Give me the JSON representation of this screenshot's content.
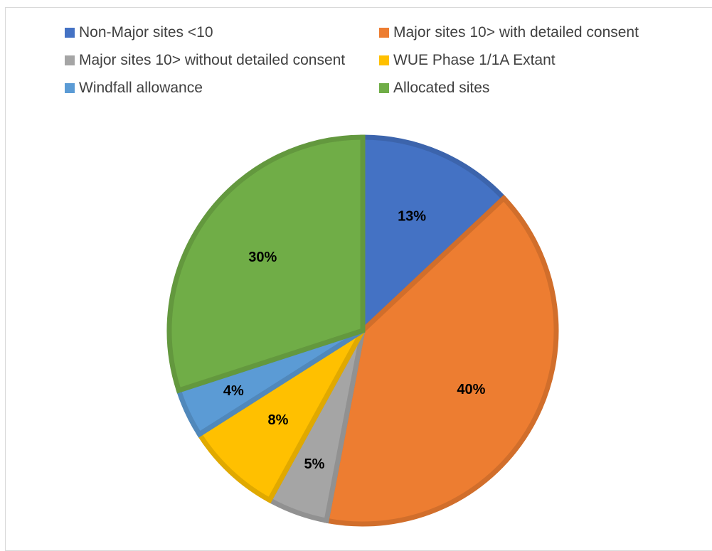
{
  "chart_data": {
    "type": "pie",
    "title": "",
    "legend_position": "top",
    "start_angle_deg": 0,
    "direction": "clockwise",
    "slices": [
      {
        "label": "Non-Major sites <10",
        "value": 13,
        "display": "13%",
        "color": "#4472C4"
      },
      {
        "label": "Major sites 10> with detailed consent",
        "value": 40,
        "display": "40%",
        "color": "#ED7D31"
      },
      {
        "label": "Major sites 10> without detailed consent",
        "value": 5,
        "display": "5%",
        "color": "#A5A5A5"
      },
      {
        "label": "WUE Phase 1/1A Extant",
        "value": 8,
        "display": "8%",
        "color": "#FFC000"
      },
      {
        "label": "Windfall allowance",
        "value": 4,
        "display": "4%",
        "color": "#5B9BD5"
      },
      {
        "label": "Allocated sites",
        "value": 30,
        "display": "30%",
        "color": "#70AD47"
      }
    ]
  }
}
